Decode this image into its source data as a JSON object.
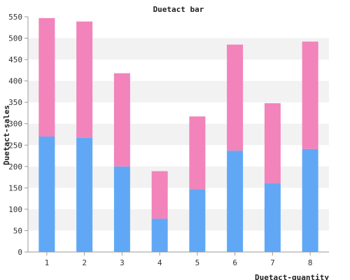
{
  "chart_data": {
    "type": "bar",
    "stacked": true,
    "title": "Duetact bar",
    "xlabel": "Duetact-quantity",
    "ylabel": "Duetact-sales",
    "categories": [
      "1",
      "2",
      "3",
      "4",
      "5",
      "6",
      "7",
      "8"
    ],
    "series": [
      {
        "values": [
          270,
          267,
          200,
          78,
          147,
          237,
          161,
          241
        ]
      },
      {
        "values": [
          277,
          272,
          218,
          111,
          170,
          248,
          187,
          251
        ]
      }
    ],
    "ylim": [
      0,
      550
    ],
    "yticks": [
      0,
      50,
      100,
      150,
      200,
      250,
      300,
      350,
      400,
      450,
      500,
      550
    ],
    "grid": true,
    "colors": {
      "series": [
        "#60a8f5",
        "#f283bb"
      ],
      "band": "#f2f2f2",
      "axis": "#999999"
    }
  }
}
